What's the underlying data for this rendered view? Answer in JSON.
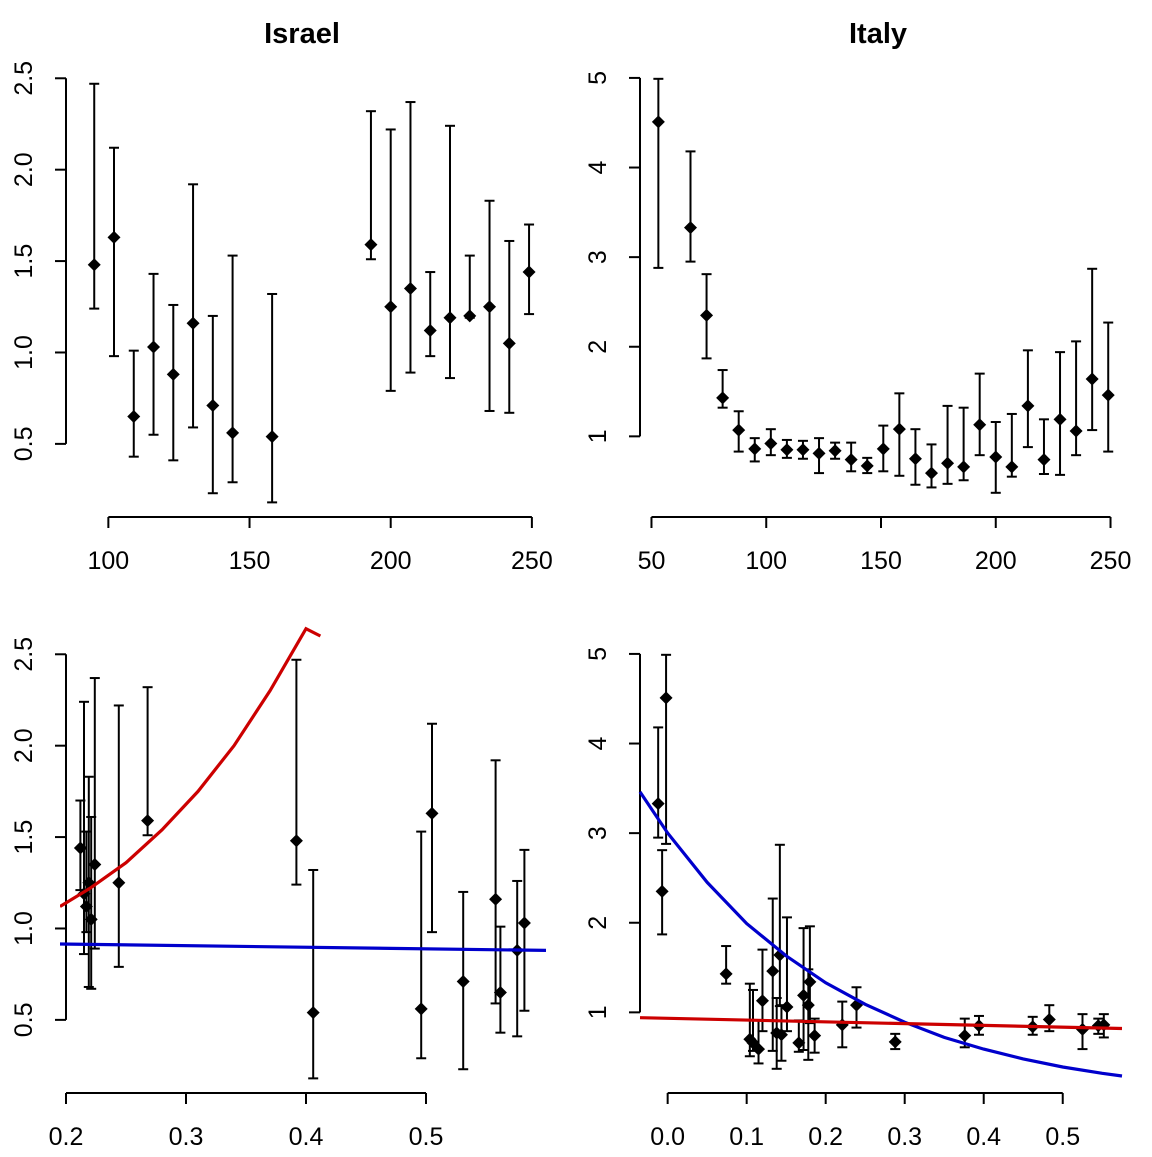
{
  "chart_data": [
    {
      "type": "scatter",
      "title": "Israel",
      "xlabel": "",
      "ylabel": "",
      "xlim": [
        85,
        255
      ],
      "ylim": [
        0.1,
        2.6
      ],
      "xticks": [
        100,
        150,
        200,
        250
      ],
      "yticks": [
        0.5,
        1.0,
        1.5,
        2.0,
        2.5
      ],
      "ytick_labels": [
        "0.5",
        "1.0",
        "1.5",
        "2.0",
        "2.5"
      ],
      "grid": false,
      "series": [
        {
          "markers": "diamond",
          "errorbars": true,
          "x": [
            95,
            102,
            109,
            116,
            123,
            130,
            137,
            144,
            158,
            193,
            200,
            207,
            214,
            221,
            228,
            235,
            242,
            249
          ],
          "y": [
            1.48,
            1.63,
            0.65,
            1.03,
            0.88,
            1.16,
            0.71,
            0.56,
            0.54,
            1.59,
            1.25,
            1.35,
            1.12,
            1.19,
            1.2,
            1.25,
            1.05,
            1.44
          ],
          "lower": [
            1.24,
            0.98,
            0.43,
            0.55,
            0.41,
            0.59,
            0.23,
            0.29,
            0.18,
            1.51,
            0.79,
            0.89,
            0.98,
            0.86,
            1.19,
            0.68,
            0.67,
            1.21
          ],
          "upper": [
            2.47,
            2.12,
            1.01,
            1.43,
            1.26,
            1.92,
            1.2,
            1.53,
            1.32,
            2.32,
            2.22,
            2.37,
            1.44,
            2.24,
            1.53,
            1.83,
            1.61,
            1.7
          ]
        }
      ]
    },
    {
      "type": "scatter",
      "title": "Italy",
      "xlabel": "",
      "ylabel": "",
      "xlim": [
        45,
        255
      ],
      "ylim": [
        0.1,
        5.2
      ],
      "xticks": [
        50,
        100,
        150,
        200,
        250
      ],
      "yticks": [
        1,
        2,
        3,
        4,
        5
      ],
      "ytick_labels": [
        "1",
        "2",
        "3",
        "4",
        "5"
      ],
      "grid": false,
      "series": [
        {
          "markers": "diamond",
          "errorbars": true,
          "x": [
            53,
            67,
            74,
            81,
            88,
            95,
            102,
            109,
            116,
            123,
            130,
            137,
            144,
            151,
            158,
            165,
            172,
            179,
            186,
            193,
            200,
            207,
            214,
            221,
            228,
            235,
            242,
            249
          ],
          "y": [
            4.51,
            3.33,
            2.35,
            1.43,
            1.07,
            0.86,
            0.92,
            0.85,
            0.85,
            0.81,
            0.84,
            0.74,
            0.67,
            0.86,
            1.08,
            0.75,
            0.59,
            0.7,
            0.66,
            1.13,
            0.77,
            0.66,
            1.34,
            0.74,
            1.19,
            1.06,
            1.64,
            1.46
          ],
          "lower": [
            2.88,
            2.95,
            1.87,
            1.32,
            0.83,
            0.72,
            0.79,
            0.76,
            0.75,
            0.59,
            0.75,
            0.61,
            0.59,
            0.61,
            0.56,
            0.46,
            0.43,
            0.47,
            0.51,
            0.79,
            0.37,
            0.55,
            0.88,
            0.58,
            0.57,
            0.79,
            1.07,
            0.83
          ],
          "upper": [
            4.99,
            4.18,
            2.81,
            1.74,
            1.28,
            0.98,
            1.08,
            0.96,
            0.95,
            0.98,
            0.93,
            0.93,
            0.76,
            1.12,
            1.48,
            1.08,
            0.91,
            1.34,
            1.32,
            1.7,
            1.16,
            1.25,
            1.96,
            1.19,
            1.94,
            2.06,
            2.87,
            2.27
          ]
        }
      ]
    },
    {
      "type": "scatter",
      "title": "",
      "xlabel": "",
      "ylabel": "",
      "xlim": [
        0.2,
        0.6
      ],
      "ylim": [
        0.1,
        2.6
      ],
      "xticks": [
        0.2,
        0.3,
        0.4,
        0.5
      ],
      "xtick_labels": [
        "0.2",
        "0.3",
        "0.4",
        "0.5"
      ],
      "yticks": [
        0.5,
        1.0,
        1.5,
        2.0,
        2.5
      ],
      "ytick_labels": [
        "0.5",
        "1.0",
        "1.5",
        "2.0",
        "2.5"
      ],
      "grid": false,
      "series": [
        {
          "markers": "diamond",
          "errorbars": true,
          "x": [
            0.212,
            0.215,
            0.217,
            0.219,
            0.221,
            0.224,
            0.244,
            0.268,
            0.392,
            0.406,
            0.496,
            0.505,
            0.531,
            0.558,
            0.562,
            0.576,
            0.582
          ],
          "y": [
            1.44,
            1.19,
            1.12,
            1.25,
            1.05,
            1.35,
            1.25,
            1.59,
            1.48,
            0.54,
            0.56,
            1.63,
            0.71,
            1.16,
            0.65,
            0.88,
            1.03
          ],
          "lower": [
            1.21,
            0.86,
            0.98,
            0.68,
            0.67,
            0.89,
            0.79,
            1.51,
            1.24,
            0.18,
            0.29,
            0.98,
            0.23,
            0.59,
            0.43,
            0.41,
            0.55
          ],
          "upper": [
            1.7,
            2.24,
            1.53,
            1.83,
            1.61,
            2.37,
            2.22,
            2.32,
            2.47,
            1.32,
            1.53,
            2.12,
            1.2,
            1.92,
            1.01,
            1.26,
            1.43
          ]
        },
        {
          "line": true,
          "color": "#cc0000",
          "x": [
            0.195,
            0.22,
            0.25,
            0.28,
            0.31,
            0.34,
            0.37,
            0.4,
            0.412
          ],
          "y": [
            1.12,
            1.22,
            1.36,
            1.54,
            1.75,
            2.0,
            2.3,
            2.64,
            2.6
          ]
        },
        {
          "line": true,
          "color": "#0000cc",
          "x": [
            0.195,
            0.6
          ],
          "y": [
            0.915,
            0.88
          ]
        }
      ]
    },
    {
      "type": "scatter",
      "title": "",
      "xlabel": "",
      "ylabel": "",
      "xlim": [
        -0.035,
        0.575
      ],
      "ylim": [
        0.1,
        5.2
      ],
      "xticks": [
        0.0,
        0.1,
        0.2,
        0.3,
        0.4,
        0.5
      ],
      "xtick_labels": [
        "0.0",
        "0.1",
        "0.2",
        "0.3",
        "0.4",
        "0.5"
      ],
      "yticks": [
        1,
        2,
        3,
        4,
        5
      ],
      "ytick_labels": [
        "1",
        "2",
        "3",
        "4",
        "5"
      ],
      "grid": false,
      "series": [
        {
          "markers": "diamond",
          "errorbars": true,
          "x": [
            -0.012,
            -0.007,
            -0.002,
            0.074,
            0.104,
            0.108,
            0.115,
            0.12,
            0.133,
            0.138,
            0.142,
            0.144,
            0.151,
            0.166,
            0.172,
            0.178,
            0.18,
            0.186,
            0.221,
            0.239,
            0.288,
            0.376,
            0.394,
            0.462,
            0.483,
            0.525,
            0.545,
            0.552
          ],
          "y": [
            3.33,
            2.35,
            4.51,
            1.43,
            0.7,
            0.66,
            0.59,
            1.13,
            1.46,
            0.77,
            1.64,
            0.75,
            1.06,
            0.66,
            1.19,
            1.08,
            1.34,
            0.74,
            0.86,
            1.08,
            0.67,
            0.74,
            0.85,
            0.84,
            0.92,
            0.81,
            0.85,
            0.86
          ],
          "lower": [
            2.95,
            1.87,
            2.88,
            1.32,
            0.51,
            0.57,
            0.43,
            0.79,
            0.57,
            0.37,
            1.07,
            0.46,
            0.79,
            0.56,
            0.58,
            0.47,
            0.88,
            0.55,
            0.61,
            0.83,
            0.59,
            0.61,
            0.75,
            0.75,
            0.79,
            0.59,
            0.76,
            0.72
          ],
          "upper": [
            4.18,
            2.81,
            4.99,
            1.74,
            1.32,
            1.25,
            0.91,
            1.7,
            2.27,
            1.16,
            2.87,
            1.08,
            2.06,
            0.91,
            1.94,
            1.48,
            1.96,
            0.93,
            1.12,
            1.28,
            0.76,
            0.93,
            0.96,
            0.95,
            1.08,
            0.98,
            0.93,
            0.98
          ]
        },
        {
          "line": true,
          "color": "#0000cc",
          "x": [
            -0.035,
            0.0,
            0.05,
            0.1,
            0.15,
            0.2,
            0.25,
            0.3,
            0.35,
            0.4,
            0.45,
            0.5,
            0.55,
            0.575
          ],
          "y": [
            3.46,
            3.0,
            2.45,
            1.99,
            1.63,
            1.33,
            1.09,
            0.89,
            0.72,
            0.59,
            0.48,
            0.39,
            0.32,
            0.29
          ]
        },
        {
          "line": true,
          "color": "#cc0000",
          "x": [
            -0.035,
            0.575
          ],
          "y": [
            0.94,
            0.82
          ]
        }
      ]
    }
  ]
}
